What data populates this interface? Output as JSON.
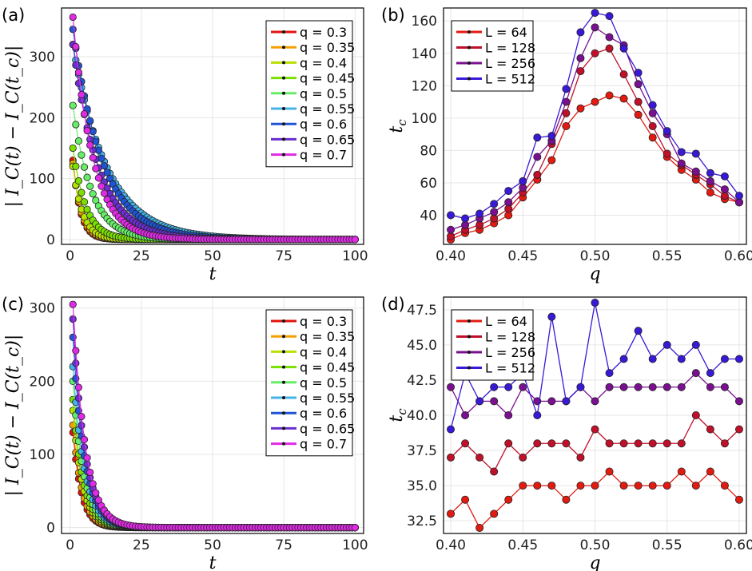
{
  "colors": {
    "q_series": [
      "#e3130f",
      "#f5a000",
      "#b8e000",
      "#7be000",
      "#66ee66",
      "#45b4e6",
      "#2054d4",
      "#6a2ed0",
      "#e02ae6"
    ],
    "L_series": [
      "#e31a10",
      "#c0102a",
      "#7a1090",
      "#3a18d8"
    ],
    "grid": "#e6e6e6",
    "frame": "#000000"
  },
  "chart_data": [
    {
      "panel": "(a)",
      "type": "scatter",
      "xlabel": "t",
      "ylabel": "| I_C(t) − I_C(t_c)|",
      "xlim": [
        -3,
        103
      ],
      "ylim": [
        -8,
        380
      ],
      "xticks": [
        "0",
        "25",
        "50",
        "75",
        "100"
      ],
      "xtick_values": [
        0,
        25,
        50,
        75,
        100
      ],
      "yticks": [
        "0",
        "100",
        "200",
        "300"
      ],
      "ytick_values": [
        0,
        100,
        200,
        300
      ],
      "legend_position": "top-right",
      "series": [
        {
          "name": "q = 0.3",
          "a0": 130,
          "tau": 2.6
        },
        {
          "name": "q = 0.35",
          "a0": 125,
          "tau": 2.9
        },
        {
          "name": "q = 0.4",
          "a0": 120,
          "tau": 3.4
        },
        {
          "name": "q = 0.45",
          "a0": 150,
          "tau": 4.5
        },
        {
          "name": "q = 0.5",
          "a0": 220,
          "tau": 6.5
        },
        {
          "name": "q = 0.55",
          "a0": 320,
          "tau": 12
        },
        {
          "name": "q = 0.6",
          "a0": 345,
          "tau": 10.5
        },
        {
          "name": "q = 0.65",
          "a0": 320,
          "tau": 9
        },
        {
          "name": "q = 0.7",
          "a0": 365,
          "tau": 7
        }
      ]
    },
    {
      "panel": "(b)",
      "type": "line",
      "xlabel": "q",
      "ylabel": "t_c",
      "xlim": [
        0.395,
        0.605
      ],
      "ylim": [
        22,
        168
      ],
      "xticks": [
        "0.40",
        "0.45",
        "0.50",
        "0.55",
        "0.60"
      ],
      "xtick_values": [
        0.4,
        0.45,
        0.5,
        0.55,
        0.6
      ],
      "yticks": [
        "40",
        "60",
        "80",
        "100",
        "120",
        "140",
        "160"
      ],
      "ytick_values": [
        40,
        60,
        80,
        100,
        120,
        140,
        160
      ],
      "legend_position": "top-left",
      "x": [
        0.4,
        0.41,
        0.42,
        0.43,
        0.44,
        0.45,
        0.46,
        0.47,
        0.48,
        0.49,
        0.5,
        0.51,
        0.52,
        0.53,
        0.54,
        0.55,
        0.56,
        0.57,
        0.58,
        0.59,
        0.6
      ],
      "series": [
        {
          "name": "L = 64",
          "values": [
            25,
            29,
            31,
            35,
            40,
            51,
            62,
            74,
            95,
            106,
            110,
            114,
            112,
            102,
            88,
            76,
            68,
            62,
            54,
            50,
            48
          ]
        },
        {
          "name": "L = 128",
          "values": [
            27,
            31,
            34,
            38,
            44,
            54,
            65,
            84,
            103,
            129,
            140,
            143,
            127,
            110,
            95,
            78,
            71,
            65,
            59,
            52,
            48
          ]
        },
        {
          "name": "L = 256",
          "values": [
            31,
            34,
            38,
            42,
            48,
            57,
            76,
            86,
            110,
            137,
            156,
            150,
            145,
            121,
            103,
            90,
            72,
            67,
            61,
            56,
            48
          ]
        },
        {
          "name": "L = 512",
          "values": [
            40,
            38,
            41,
            47,
            55,
            61,
            88,
            89,
            118,
            153,
            165,
            163,
            143,
            128,
            108,
            92,
            79,
            78,
            66,
            64,
            52
          ]
        }
      ]
    },
    {
      "panel": "(c)",
      "type": "scatter",
      "xlabel": "t",
      "ylabel": "| I_C(t) − I_C(t_c)|",
      "xlim": [
        -3,
        103
      ],
      "ylim": [
        -8,
        315
      ],
      "xticks": [
        "0",
        "25",
        "50",
        "75",
        "100"
      ],
      "xtick_values": [
        0,
        25,
        50,
        75,
        100
      ],
      "yticks": [
        "0",
        "100",
        "200",
        "300"
      ],
      "ytick_values": [
        0,
        100,
        200,
        300
      ],
      "legend_position": "top-right",
      "series": [
        {
          "name": "q = 0.3",
          "a0": 130,
          "tau": 3.0
        },
        {
          "name": "q = 0.35",
          "a0": 140,
          "tau": 3.2
        },
        {
          "name": "q = 0.4",
          "a0": 160,
          "tau": 3.4
        },
        {
          "name": "q = 0.45",
          "a0": 175,
          "tau": 3.6
        },
        {
          "name": "q = 0.5",
          "a0": 200,
          "tau": 3.8
        },
        {
          "name": "q = 0.55",
          "a0": 220,
          "tau": 4.0
        },
        {
          "name": "q = 0.6",
          "a0": 260,
          "tau": 4.1
        },
        {
          "name": "q = 0.65",
          "a0": 285,
          "tau": 4.2
        },
        {
          "name": "q = 0.7",
          "a0": 305,
          "tau": 4.3
        }
      ]
    },
    {
      "panel": "(d)",
      "type": "line",
      "xlabel": "q",
      "ylabel": "t_c",
      "xlim": [
        0.395,
        0.605
      ],
      "ylim": [
        31.6,
        48.4
      ],
      "xticks": [
        "0.40",
        "0.45",
        "0.50",
        "0.55",
        "0.60"
      ],
      "xtick_values": [
        0.4,
        0.45,
        0.5,
        0.55,
        0.6
      ],
      "yticks": [
        "32.5",
        "35.0",
        "37.5",
        "40.0",
        "42.5",
        "45.0",
        "47.5"
      ],
      "ytick_values": [
        32.5,
        35.0,
        37.5,
        40.0,
        42.5,
        45.0,
        47.5
      ],
      "legend_position": "top-left",
      "x": [
        0.4,
        0.41,
        0.42,
        0.43,
        0.44,
        0.45,
        0.46,
        0.47,
        0.48,
        0.49,
        0.5,
        0.51,
        0.52,
        0.53,
        0.54,
        0.55,
        0.56,
        0.57,
        0.58,
        0.59,
        0.6
      ],
      "series": [
        {
          "name": "L = 64",
          "values": [
            33,
            34,
            32,
            33,
            34,
            35,
            35,
            35,
            34,
            35,
            35,
            36,
            35,
            35,
            35,
            35,
            36,
            35,
            36,
            35,
            34
          ]
        },
        {
          "name": "L = 128",
          "values": [
            37,
            38,
            37,
            36,
            38,
            37,
            38,
            38,
            38,
            37,
            39,
            38,
            38,
            38,
            38,
            38,
            38,
            40,
            39,
            38,
            39
          ]
        },
        {
          "name": "L = 256",
          "values": [
            42,
            40,
            41,
            41,
            40,
            42,
            41,
            41,
            41,
            42,
            41,
            42,
            42,
            42,
            42,
            42,
            42,
            43,
            42,
            42,
            41
          ]
        },
        {
          "name": "L = 512",
          "values": [
            39,
            43,
            41,
            42,
            42,
            43,
            40,
            47,
            41,
            42,
            48,
            43,
            44,
            46,
            44,
            45,
            44,
            45,
            43,
            44,
            44
          ]
        }
      ]
    }
  ]
}
